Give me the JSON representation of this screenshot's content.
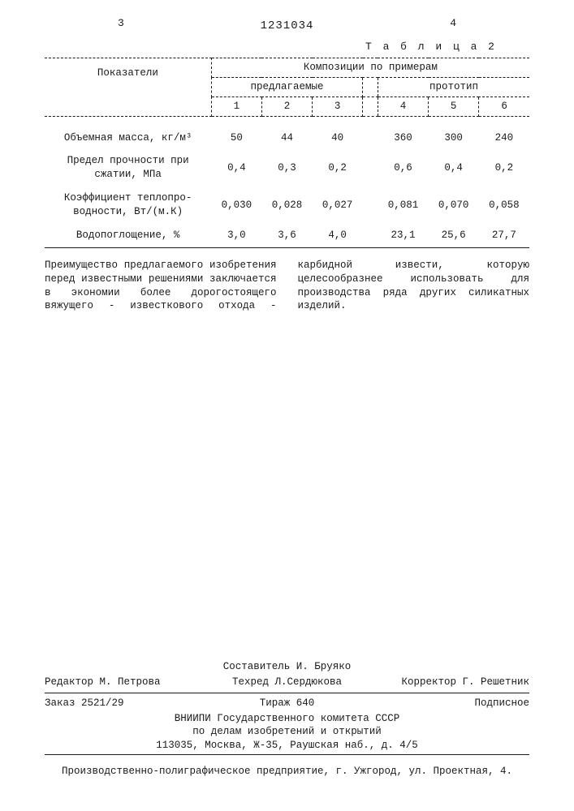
{
  "header": {
    "left_page": "3",
    "right_page": "4",
    "patent_number": "1231034"
  },
  "table": {
    "caption": "Т а б л и ц а 2",
    "col_header_main": "Показатели",
    "col_header_group": "Композиции по примерам",
    "subgroup_left": "предлагаемые",
    "subgroup_right": "прототип",
    "col_nums": [
      "1",
      "2",
      "3",
      "4",
      "5",
      "6"
    ],
    "rows": [
      {
        "label": "Объемная масса, кг/м³",
        "vals": [
          "50",
          "44",
          "40",
          "360",
          "300",
          "240"
        ]
      },
      {
        "label": "Предел прочности при сжатии, МПа",
        "vals": [
          "0,4",
          "0,3",
          "0,2",
          "0,6",
          "0,4",
          "0,2"
        ]
      },
      {
        "label": "Коэффициент теплопро-\nводности, Вт/(м.К)",
        "vals": [
          "0,030",
          "0,028",
          "0,027",
          "0,081",
          "0,070",
          "0,058"
        ]
      },
      {
        "label": "Водопоглощение, %",
        "vals": [
          "3,0",
          "3,6",
          "4,0",
          "23,1",
          "25,6",
          "27,7"
        ]
      }
    ]
  },
  "body_text": {
    "left": "Преимущество предлагаемого изобретения перед известными решениями заключается в экономии более дорогостоящего вяжущего - известкового",
    "right": "отхода - карбидной извести, которую целесообразнее использовать для производства ряда других силикатных изделий."
  },
  "colophon": {
    "compiler": "Составитель И. Бруяко",
    "editor": "Редактор М. Петрова",
    "techred": "Техред Л.Сердюкова",
    "corrector": "Корректор Г. Решетник",
    "order": "Заказ 2521/29",
    "tirage": "Тираж 640",
    "subscr": "Подписное",
    "org1": "ВНИИПИ Государственного комитета СССР",
    "org2": "по делам изобретений и открытий",
    "org3": "113035, Москва, Ж-35, Раушская наб., д. 4/5",
    "press": "Производственно-полиграфическое предприятие, г. Ужгород, ул. Проектная, 4."
  }
}
